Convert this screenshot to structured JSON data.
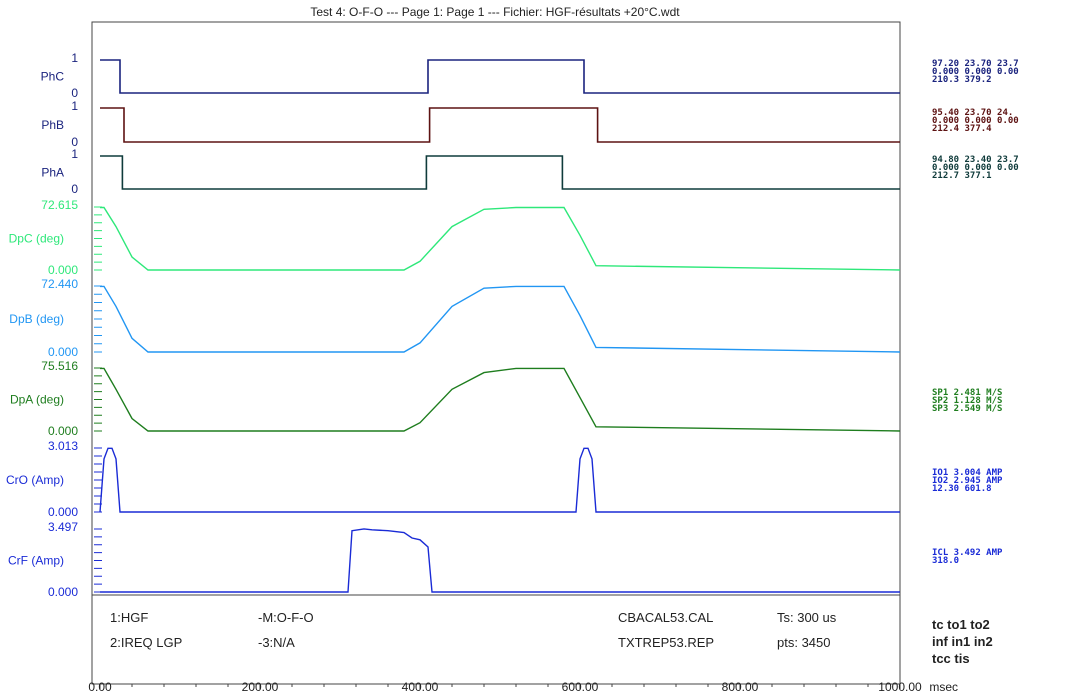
{
  "title": "Test 4: O-F-O --- Page 1:      Page 1 --- Fichier: HGF-résultats +20°C.wdt",
  "chart_data": {
    "type": "line",
    "xlabel_unit": "msec",
    "x_range": [
      0,
      1000
    ],
    "x_ticks": [
      "0.00",
      "200.00",
      "400.00",
      "600.00",
      "800.00",
      "1000.00"
    ],
    "series": [
      {
        "name": "PhC",
        "kind": "digital",
        "color": "#1a237e",
        "top_label": "1",
        "bottom_label": "0",
        "x": [
          0,
          25,
          25,
          410,
          410,
          605,
          605,
          1000
        ],
        "y": [
          1,
          1,
          0,
          0,
          1,
          1,
          0,
          0
        ]
      },
      {
        "name": "PhB",
        "kind": "digital",
        "color": "#5d1212",
        "top_label": "1",
        "bottom_label": "0",
        "x": [
          0,
          30,
          30,
          412,
          412,
          622,
          622,
          1000
        ],
        "y": [
          1,
          1,
          0,
          0,
          1,
          1,
          0,
          0
        ]
      },
      {
        "name": "PhA",
        "kind": "digital",
        "color": "#0f3b3b",
        "top_label": "1",
        "bottom_label": "0",
        "x": [
          0,
          28,
          28,
          408,
          408,
          578,
          578,
          1000
        ],
        "y": [
          1,
          1,
          0,
          0,
          1,
          1,
          0,
          0
        ]
      },
      {
        "name": "DpC (deg)",
        "kind": "analog",
        "color": "#2ee87a",
        "top_label": "72.615",
        "bottom_label": "0.000",
        "ylim": [
          0,
          72.615
        ],
        "x": [
          0,
          5,
          20,
          40,
          60,
          380,
          400,
          440,
          480,
          520,
          580,
          600,
          620,
          1000
        ],
        "y": [
          72,
          72,
          50,
          15,
          0,
          0,
          10,
          50,
          70,
          72,
          72,
          40,
          5,
          0
        ]
      },
      {
        "name": "DpB (deg)",
        "kind": "analog",
        "color": "#2196f3",
        "top_label": "72.440",
        "bottom_label": "0.000",
        "ylim": [
          0,
          72.44
        ],
        "x": [
          0,
          5,
          20,
          40,
          60,
          380,
          400,
          440,
          480,
          520,
          580,
          600,
          620,
          1000
        ],
        "y": [
          72,
          72,
          50,
          15,
          0,
          0,
          10,
          50,
          70,
          72,
          72,
          40,
          5,
          0
        ]
      },
      {
        "name": "DpA (deg)",
        "kind": "analog",
        "color": "#1e7d1e",
        "top_label": "75.516",
        "bottom_label": "0.000",
        "ylim": [
          0,
          75.516
        ],
        "x": [
          0,
          5,
          20,
          40,
          60,
          380,
          400,
          440,
          480,
          520,
          580,
          600,
          620,
          1000
        ],
        "y": [
          75,
          75,
          50,
          15,
          0,
          0,
          10,
          50,
          70,
          75,
          75,
          40,
          5,
          0
        ]
      },
      {
        "name": "CrO (Amp)",
        "kind": "analog",
        "color": "#1a2bd6",
        "top_label": "3.013",
        "bottom_label": "0.000",
        "ylim": [
          0,
          3.013
        ],
        "x": [
          0,
          5,
          10,
          15,
          20,
          25,
          595,
          600,
          605,
          610,
          615,
          620,
          1000
        ],
        "y": [
          0,
          2.5,
          3.0,
          3.0,
          2.5,
          0,
          0,
          2.5,
          3.0,
          3.0,
          2.5,
          0,
          0
        ]
      },
      {
        "name": "CrF (Amp)",
        "kind": "analog",
        "color": "#1a2bd6",
        "top_label": "3.497",
        "bottom_label": "0.000",
        "ylim": [
          0,
          3.497
        ],
        "x": [
          0,
          310,
          315,
          330,
          340,
          360,
          380,
          390,
          400,
          410,
          415,
          1000
        ],
        "y": [
          0,
          0,
          3.4,
          3.5,
          3.45,
          3.4,
          3.3,
          3.0,
          2.9,
          2.5,
          0,
          0
        ]
      }
    ]
  },
  "side_readouts": [
    {
      "color": "#1a237e",
      "lines": [
        "97.20 23.70 23.7",
        "0.000 0.000 0.00",
        "210.3 379.2"
      ]
    },
    {
      "color": "#5d1212",
      "lines": [
        "95.40 23.70 24.",
        "0.000 0.000 0.00",
        "212.4 377.4"
      ]
    },
    {
      "color": "#0f3b3b",
      "lines": [
        "94.80 23.40 23.7",
        "0.000 0.000 0.00",
        "212.7 377.1"
      ]
    },
    {
      "color": "#1e7d1e",
      "lines": [
        "SP1    2.481 M/S",
        "SP2    1.128 M/S",
        "SP3    2.549 M/S"
      ]
    },
    {
      "color": "#1a2bd6",
      "lines": [
        "IO1    3.004 AMP",
        "IO2    2.945 AMP",
        "12.30 601.8"
      ]
    },
    {
      "color": "#1a2bd6",
      "lines": [
        "ICL    3.492 AMP",
        "318.0"
      ]
    }
  ],
  "info_panel": {
    "row1": [
      "1:HGF",
      "-M:O-F-O",
      "CBACAL53.CAL",
      "Ts: 300 us"
    ],
    "row2": [
      "2:IREQ LGP",
      "-3:N/A",
      "TXTREP53.REP",
      "pts: 3450"
    ],
    "right": [
      "tc  to1 to2",
      "inf in1 in2",
      "tcc tis"
    ]
  }
}
